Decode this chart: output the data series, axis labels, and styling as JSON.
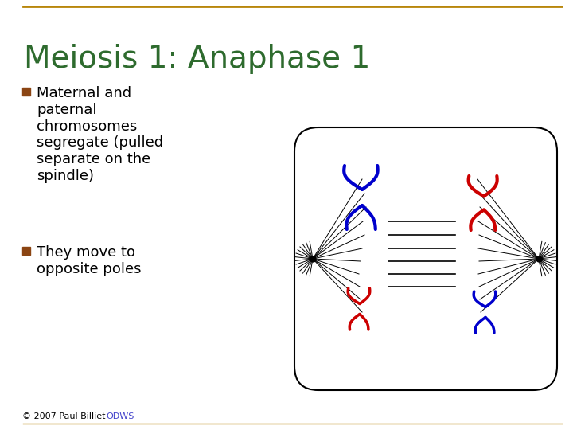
{
  "title": "Meiosis 1: Anaphase 1",
  "title_color": "#2E6B2E",
  "title_fontsize": 28,
  "bg_color": "#FFFFFF",
  "border_top_color": "#B8860B",
  "border_bottom_color": "#B8860B",
  "bullet_color": "#8B4513",
  "bullet_text_1": "Maternal and\npaternal\nchromosomes\nsegregate (pulled\nseparate on the\nspindle)",
  "bullet_text_2": "They move to\nopposite poles",
  "footer_text": "© 2007 Paul Billiet ",
  "footer_link": "ODWS",
  "blue_color": "#0000CC",
  "red_color": "#CC0000",
  "spindle_color": "#000000",
  "chromosome_lw": 2.5
}
